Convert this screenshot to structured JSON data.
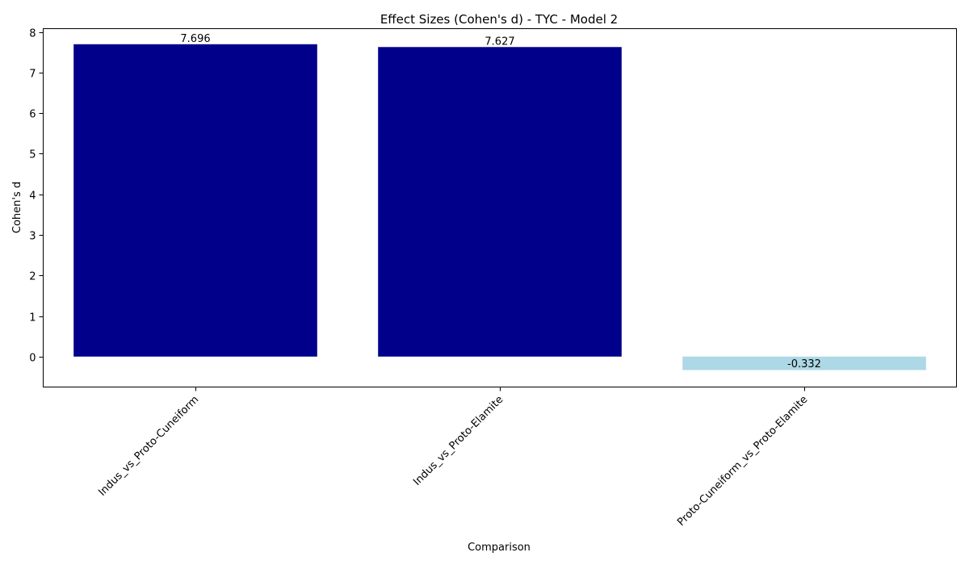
{
  "chart_data": {
    "type": "bar",
    "title": "Effect Sizes (Cohen's d) - TYC - Model 2",
    "xlabel": "Comparison",
    "ylabel": "Cohen's d",
    "categories": [
      "Indus_vs_Proto-Cuneiform",
      "Indus_vs_Proto-Elamite",
      "Proto-Cuneiform_vs_Proto-Elamite"
    ],
    "values": [
      7.696,
      7.627,
      -0.332
    ],
    "value_labels": [
      "7.696",
      "7.627",
      "-0.332"
    ],
    "bar_colors": [
      "#00008b",
      "#00008b",
      "#add8e6"
    ],
    "ylim": [
      -0.75,
      8.08
    ],
    "yticks": [
      0,
      1,
      2,
      3,
      4,
      5,
      6,
      7,
      8
    ],
    "grid": false,
    "legend": "none"
  }
}
